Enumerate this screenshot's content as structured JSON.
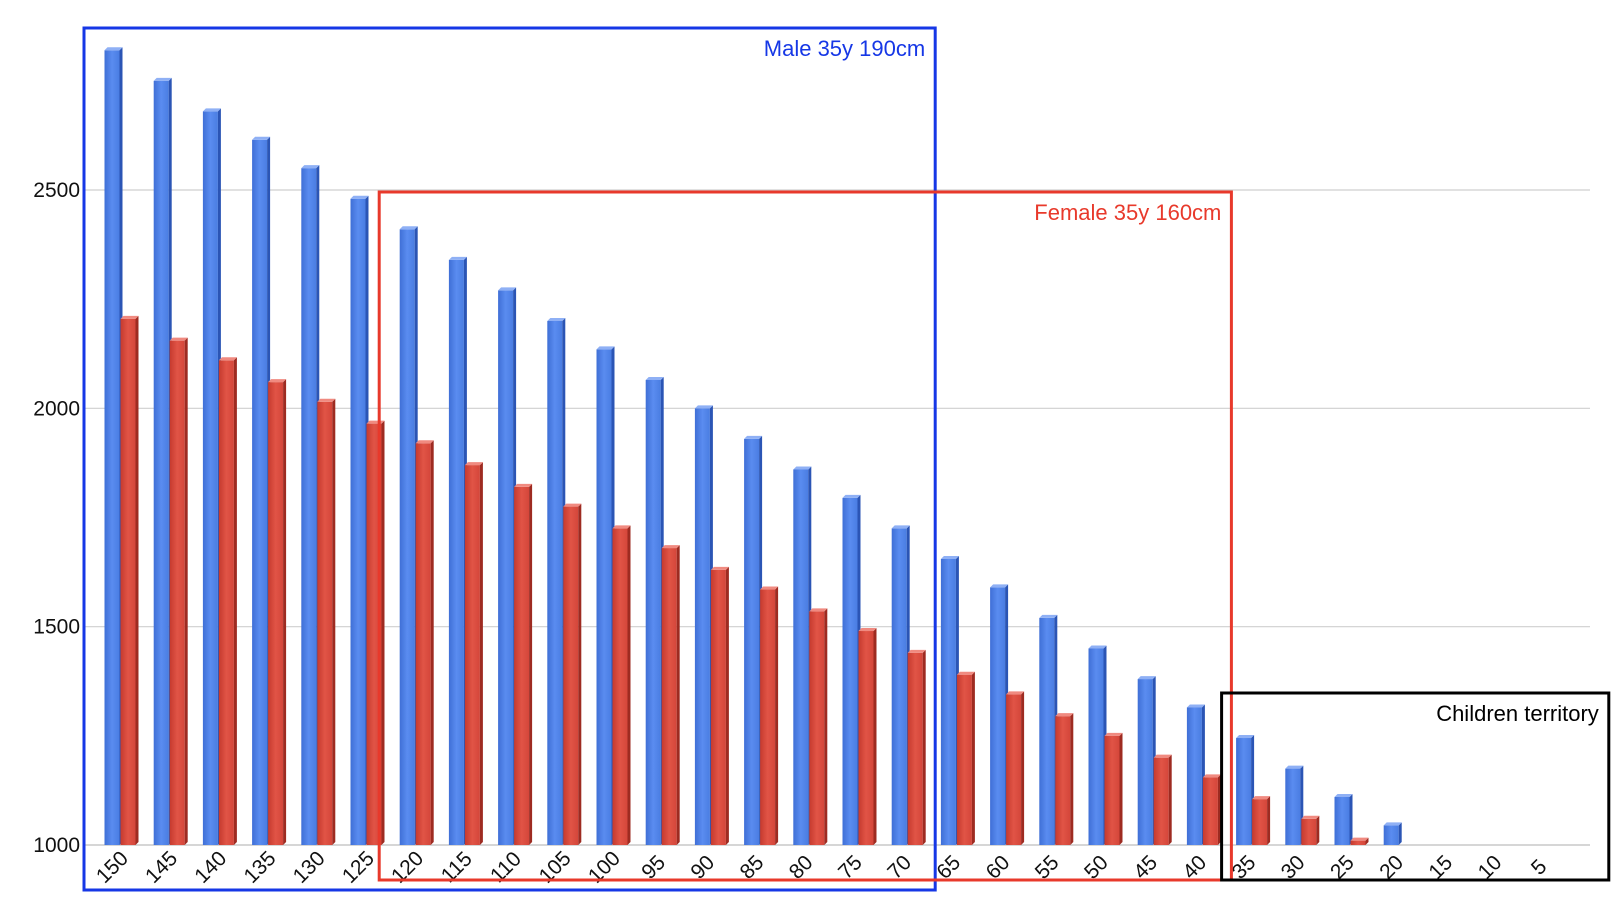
{
  "chart_data": {
    "type": "bar",
    "title": "",
    "xlabel": "",
    "ylabel": "",
    "ylim": [
      1000,
      2800
    ],
    "yticks": [
      1000,
      1500,
      2000,
      2500
    ],
    "grid": true,
    "legend": "none",
    "colors": {
      "male": "#4f81e4",
      "female": "#d9473a"
    },
    "categories": [
      "150",
      "145",
      "140",
      "135",
      "130",
      "125",
      "120",
      "115",
      "110",
      "105",
      "100",
      "95",
      "90",
      "85",
      "80",
      "75",
      "70",
      "65",
      "60",
      "55",
      "50",
      "45",
      "40",
      "35",
      "30",
      "25",
      "20",
      "15",
      "10",
      "5"
    ],
    "series": [
      {
        "values": [
          2820,
          2750,
          2680,
          2615,
          2550,
          2480,
          2410,
          2340,
          2270,
          2200,
          2135,
          2065,
          2000,
          1930,
          1860,
          1795,
          1725,
          1655,
          1590,
          1520,
          1450,
          1380,
          1315,
          1245,
          1175,
          1110,
          1045,
          null,
          null,
          null
        ]
      },
      {
        "values": [
          2205,
          2155,
          2110,
          2060,
          2015,
          1965,
          1920,
          1870,
          1820,
          1775,
          1725,
          1680,
          1630,
          1585,
          1535,
          1490,
          1440,
          1390,
          1345,
          1295,
          1250,
          1200,
          1155,
          1105,
          1060,
          1010,
          null,
          null,
          null,
          null
        ]
      }
    ],
    "annotations": [
      {
        "label": "Male 35y 190cm",
        "color": "#1637e6",
        "from": "150",
        "to": "70"
      },
      {
        "label": "Female 35y 160cm",
        "color": "#e8392b",
        "from": "120",
        "to": "40"
      },
      {
        "label": "Children territory",
        "color": "#000000",
        "from": "35",
        "to": "5"
      }
    ]
  }
}
